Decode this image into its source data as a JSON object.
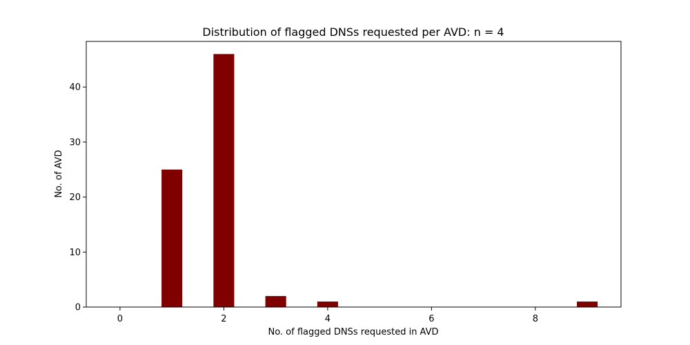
{
  "chart_data": {
    "type": "bar",
    "title": "Distribution of flagged DNSs requested per AVD: n = 4",
    "xlabel": "No. of flagged DNSs requested in AVD",
    "ylabel": "No. of AVD",
    "x": [
      1,
      2,
      3,
      4,
      9
    ],
    "values": [
      25,
      46,
      2,
      1,
      1
    ],
    "bar_width": 0.4,
    "xlim": [
      -0.65,
      9.65
    ],
    "ylim": [
      0,
      48.3
    ],
    "xticks": [
      0,
      2,
      4,
      6,
      8
    ],
    "xtick_labels": [
      "0",
      "2",
      "4",
      "6",
      "8"
    ],
    "yticks": [
      0,
      10,
      20,
      30,
      40
    ],
    "ytick_labels": [
      "0",
      "10",
      "20",
      "30",
      "40"
    ],
    "bar_color": "#800000",
    "grid": false,
    "legend": "none"
  }
}
